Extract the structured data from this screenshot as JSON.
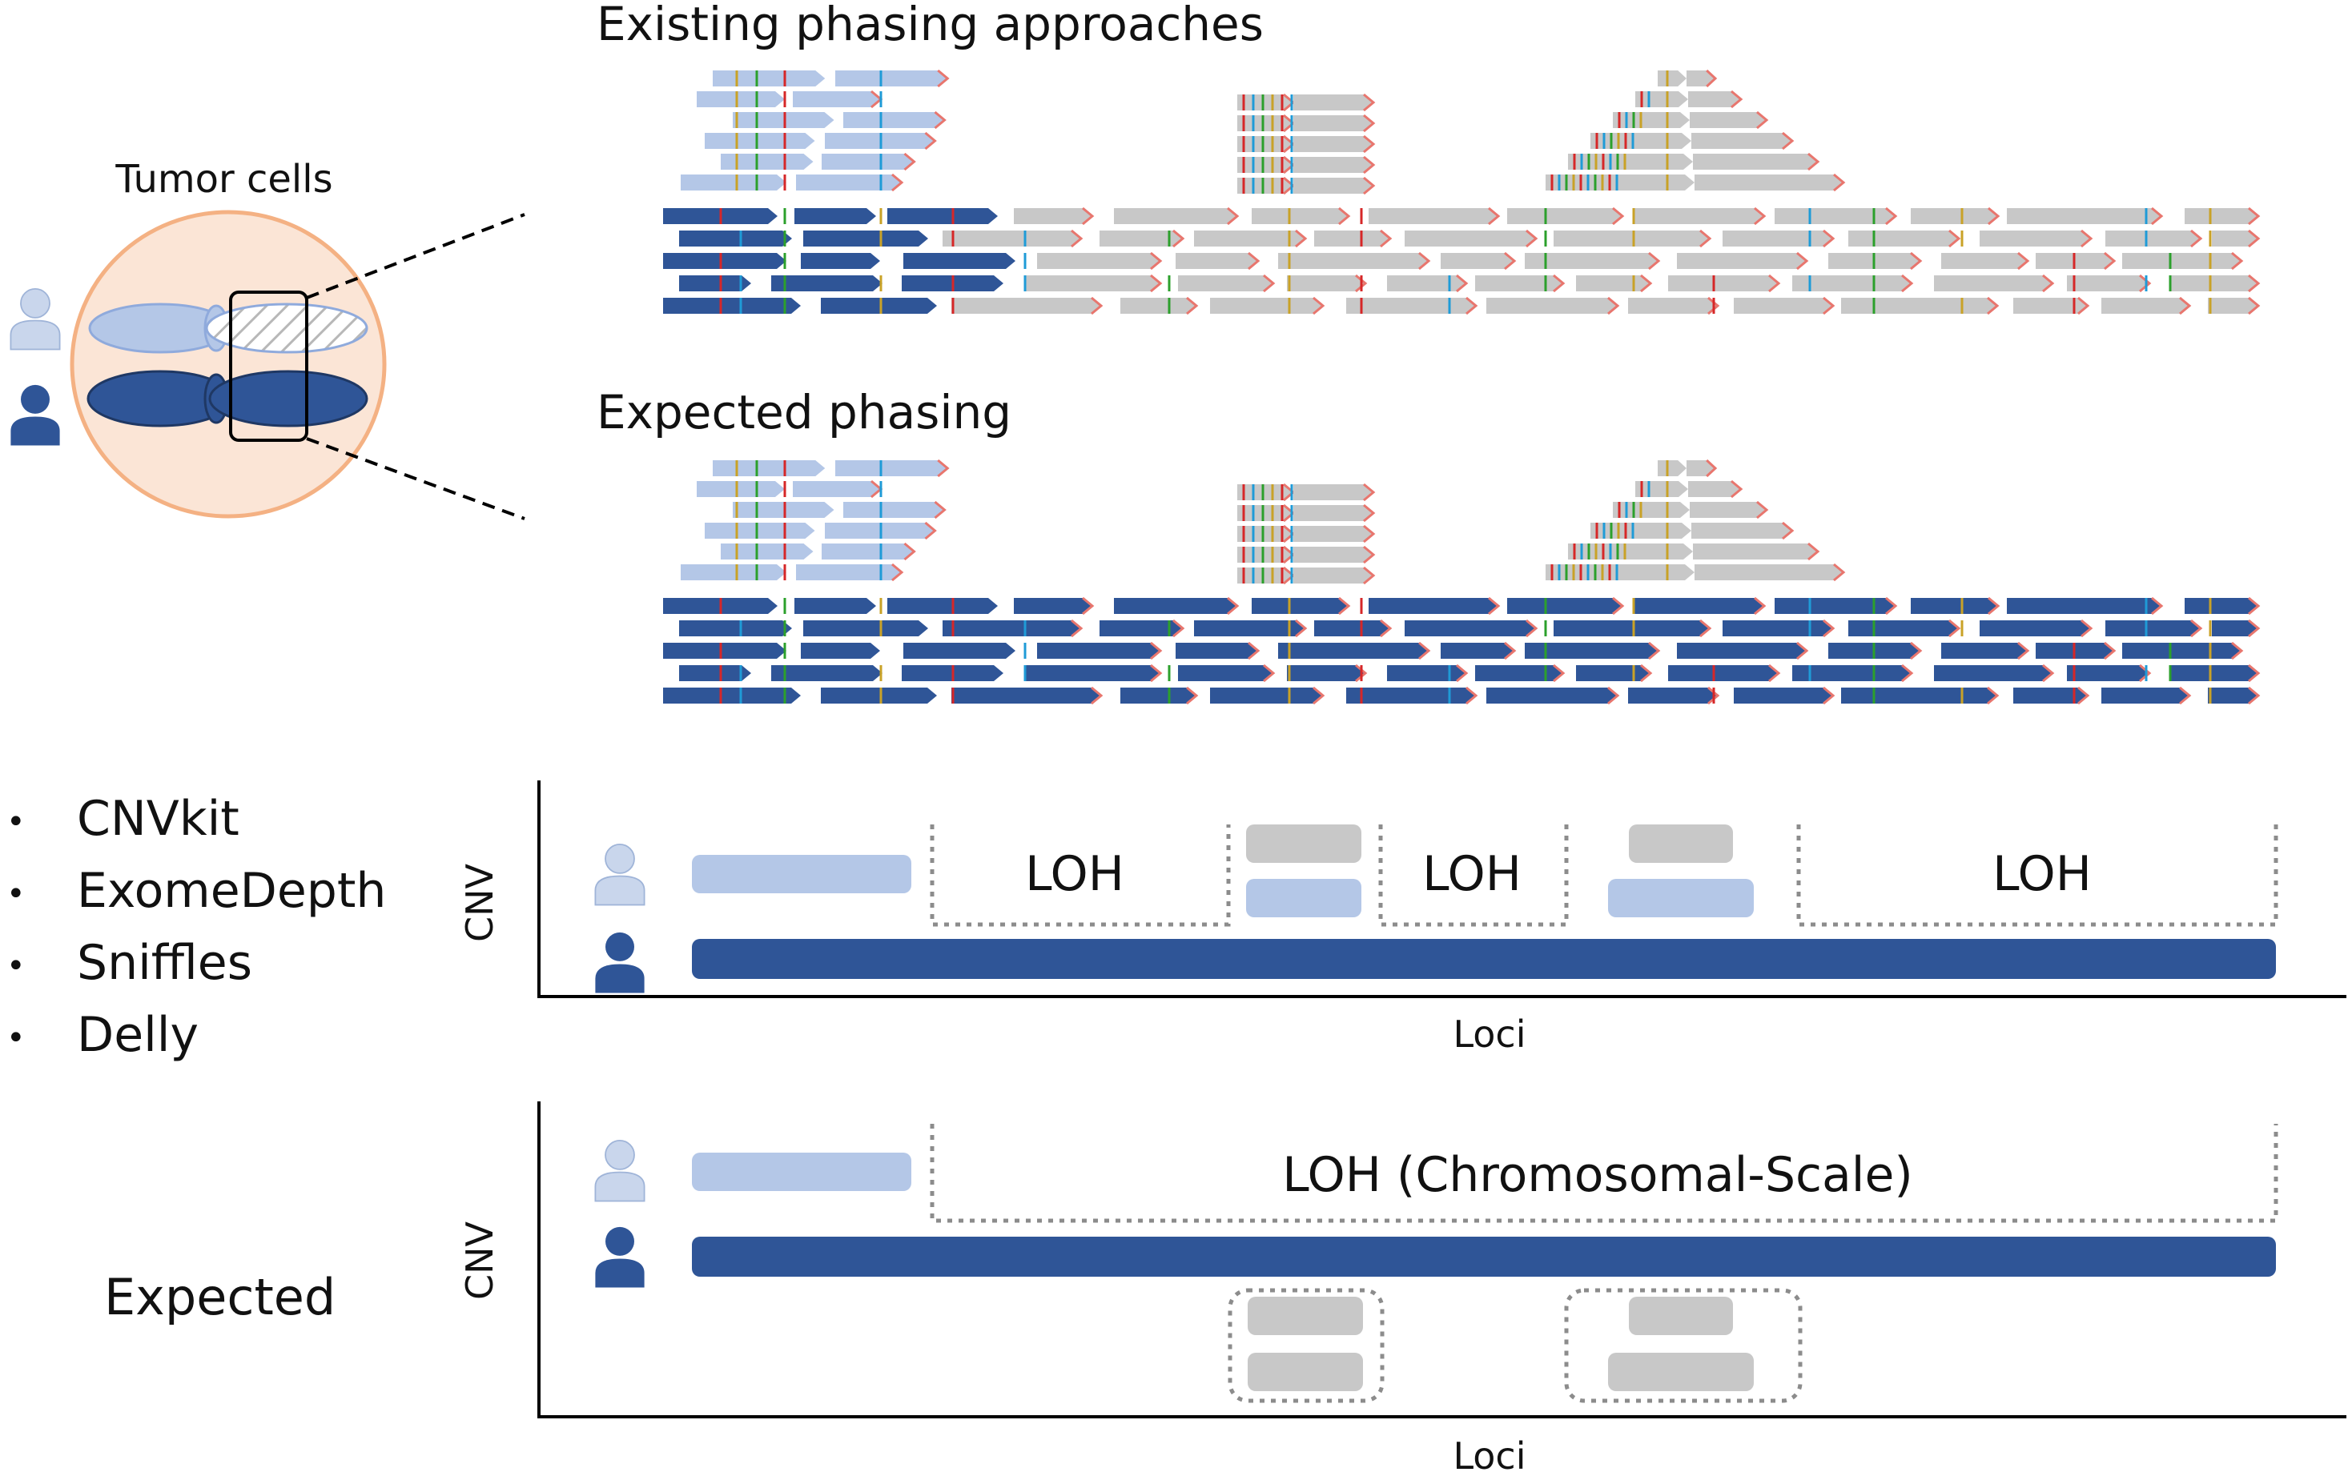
{
  "figure": {
    "cell_label": "Tumor cells",
    "existing_title": "Existing phasing approaches",
    "expected_title": "Expected phasing",
    "tools": [
      "CNVkit",
      "ExomeDepth",
      "Sniffles",
      "Delly"
    ],
    "expected_label": "Expected",
    "cnv_ylabel": "CNV",
    "loci_xlabel": "Loci",
    "loh_label": "LOH",
    "loh_chrom_label": "LOH (Chromosomal-Scale)",
    "colors": {
      "paternal_dark": "#2f5597",
      "maternal_light": "#b4c7e7",
      "unassigned_gray": "#c8c8c8",
      "cell_fill": "#fbe5d6",
      "cell_border": "#f4b183",
      "snv_red": "#d62728",
      "snv_blue": "#1f9bd7",
      "snv_green": "#2ca02c",
      "snv_gold": "#c9a227",
      "read_tip": "#e8766e"
    }
  }
}
